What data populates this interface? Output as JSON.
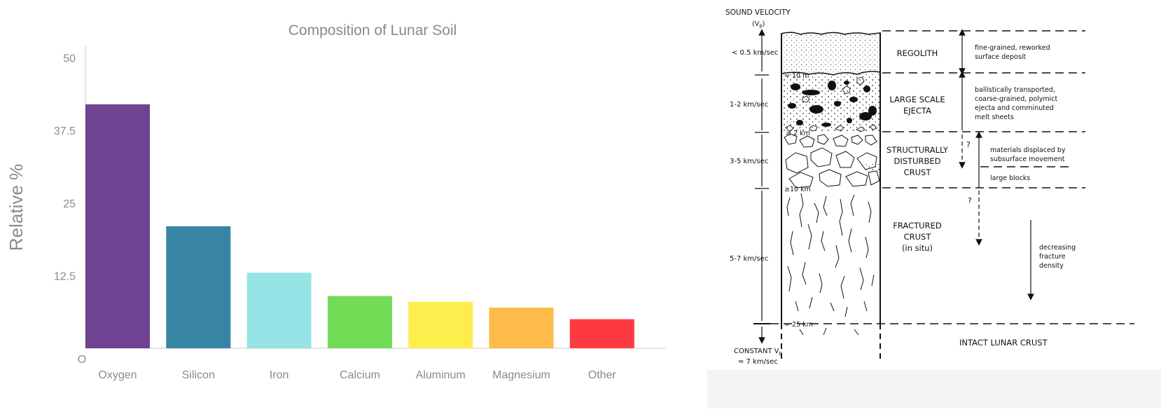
{
  "chart_data": {
    "type": "bar",
    "title": "Composition of Lunar Soil",
    "xlabel": "",
    "ylabel": "Relative %",
    "categories": [
      "Oxygen",
      "Silicon",
      "Iron",
      "Calcium",
      "Aluminum",
      "Magnesium",
      "Other"
    ],
    "values": [
      42,
      21,
      13,
      9,
      8,
      7,
      5
    ],
    "colors": [
      "#6f4492",
      "#3885a3",
      "#97e4e6",
      "#73dc57",
      "#fdee4d",
      "#fdbc4a",
      "#fd3a42"
    ],
    "ylim": [
      0,
      52
    ],
    "yticks": [
      {
        "value": 0,
        "label": "O"
      },
      {
        "value": 12.5,
        "label": "12.5"
      },
      {
        "value": 25,
        "label": "25"
      },
      {
        "value": 37.5,
        "label": "37.5"
      },
      {
        "value": 50,
        "label": "50"
      }
    ],
    "grid": false,
    "legend": "none"
  },
  "diagram": {
    "sound_velocity_title": "SOUND VELOCITY",
    "sound_velocity_symbol": "(V",
    "sound_velocity_sub": "p",
    "sound_velocity_close": ")",
    "velocities": {
      "regolith": "< 0.5 km/sec",
      "ejecta": "1-2 km/sec",
      "disturbed": "3-5 km/sec",
      "fractured": "5-7 km/sec"
    },
    "depths": {
      "d10m": "≈ 10 m",
      "d2km": "≥ 2 km",
      "d10km": "≥10 km",
      "d25km": "≈ 25 km"
    },
    "constant_label": "CONSTANT V",
    "constant_sub": "p",
    "constant_value": "≈ 7 km/sec",
    "layers": {
      "regolith": "REGOLITH",
      "ejecta_1": "LARGE SCALE",
      "ejecta_2": "EJECTA",
      "disturbed_1": "STRUCTURALLY",
      "disturbed_2": "DISTURBED",
      "disturbed_3": "CRUST",
      "fractured_1": "FRACTURED",
      "fractured_2": "CRUST",
      "fractured_3": "(in situ)",
      "intact": "INTACT LUNAR CRUST"
    },
    "notes": {
      "regolith_1": "fine-grained, reworked",
      "regolith_2": "surface deposit",
      "ejecta_1": "ballistically transported,",
      "ejecta_2": "coarse-grained, polymict",
      "ejecta_3": "ejecta and comminuted",
      "ejecta_4": "melt sheets",
      "displaced_1": "materials displaced by",
      "displaced_2": "subsurface movement",
      "blocks": "large blocks",
      "fracture_1": "decreasing",
      "fracture_2": "fracture",
      "fracture_3": "density",
      "question": "?"
    }
  }
}
